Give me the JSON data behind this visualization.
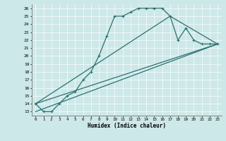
{
  "xlabel": "Humidex (Indice chaleur)",
  "bg_color": "#cde8e8",
  "line_color": "#2d7070",
  "grid_color": "#b0d4d4",
  "xlim": [
    -0.5,
    23.5
  ],
  "ylim": [
    12.5,
    26.5
  ],
  "yticks": [
    13,
    14,
    15,
    16,
    17,
    18,
    19,
    20,
    21,
    22,
    23,
    24,
    25,
    26
  ],
  "xticks": [
    0,
    1,
    2,
    3,
    4,
    5,
    6,
    7,
    8,
    9,
    10,
    11,
    12,
    13,
    14,
    15,
    16,
    17,
    18,
    19,
    20,
    21,
    22,
    23
  ],
  "line1_x": [
    0,
    1,
    2,
    3,
    4,
    5,
    6,
    7,
    8,
    9,
    10,
    11,
    12,
    13,
    14,
    15,
    16,
    17,
    18,
    19,
    20,
    21,
    22,
    23
  ],
  "line1_y": [
    14,
    13,
    13,
    14,
    15,
    15.5,
    17,
    18,
    20,
    22.5,
    25,
    25,
    25.5,
    26,
    26,
    26,
    26,
    25,
    22,
    23.5,
    22,
    21.5,
    21.5,
    21.5
  ],
  "line2_x": [
    0,
    23
  ],
  "line2_y": [
    14,
    21.5
  ],
  "line3_x": [
    0,
    23
  ],
  "line3_y": [
    13,
    21.5
  ],
  "line4_x": [
    0,
    17,
    23
  ],
  "line4_y": [
    14,
    25,
    21.5
  ],
  "markersize": 3,
  "linewidth": 0.9
}
